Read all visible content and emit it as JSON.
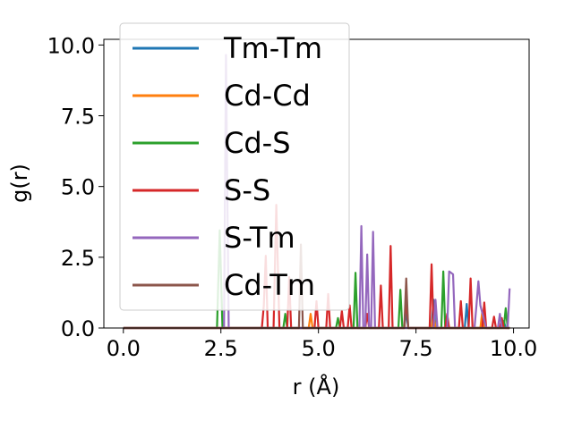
{
  "chart_data": {
    "type": "line",
    "title": "",
    "xlabel": "r (Å)",
    "ylabel": "g(r)",
    "xlim": [
      -0.5,
      10.4
    ],
    "ylim": [
      0,
      10.2
    ],
    "xticks": [
      "0.0",
      "2.5",
      "5.0",
      "7.5",
      "10.0"
    ],
    "yticks": [
      "0.0",
      "2.5",
      "5.0",
      "7.5",
      "10.0"
    ],
    "grid": false,
    "legend_position": "upper-left",
    "series": [
      {
        "name": "Tm-Tm",
        "color": "#1f77b4",
        "points": [
          [
            0,
            0
          ],
          [
            7.2,
            0
          ],
          [
            7.25,
            0.6
          ],
          [
            7.3,
            0
          ],
          [
            7.9,
            0
          ],
          [
            7.95,
            1.0
          ],
          [
            8.0,
            0
          ],
          [
            8.75,
            0
          ],
          [
            8.8,
            0.85
          ],
          [
            8.85,
            0
          ],
          [
            9.7,
            0
          ],
          [
            9.75,
            0.25
          ],
          [
            9.8,
            0
          ],
          [
            9.9,
            0
          ]
        ]
      },
      {
        "name": "Cd-Cd",
        "color": "#ff7f0e",
        "points": [
          [
            0,
            0
          ],
          [
            4.75,
            0
          ],
          [
            4.8,
            0.5
          ],
          [
            4.85,
            0
          ],
          [
            7.9,
            0
          ],
          [
            7.95,
            0.5
          ],
          [
            8.0,
            0
          ],
          [
            9.15,
            0
          ],
          [
            9.2,
            0.6
          ],
          [
            9.25,
            0
          ],
          [
            9.9,
            0
          ]
        ]
      },
      {
        "name": "Cd-S",
        "color": "#2ca02c",
        "points": [
          [
            0,
            0
          ],
          [
            2.4,
            0
          ],
          [
            2.47,
            3.45
          ],
          [
            2.54,
            0
          ],
          [
            4.1,
            0
          ],
          [
            4.15,
            0.5
          ],
          [
            4.2,
            0
          ],
          [
            5.45,
            0
          ],
          [
            5.5,
            0.35
          ],
          [
            5.55,
            0
          ],
          [
            5.9,
            0
          ],
          [
            5.95,
            1.95
          ],
          [
            6.0,
            0
          ],
          [
            7.05,
            0
          ],
          [
            7.1,
            1.35
          ],
          [
            7.15,
            0
          ],
          [
            8.15,
            0
          ],
          [
            8.2,
            2.0
          ],
          [
            8.25,
            0
          ],
          [
            9.75,
            0
          ],
          [
            9.8,
            0.7
          ],
          [
            9.85,
            0
          ],
          [
            9.9,
            0
          ]
        ]
      },
      {
        "name": "S-S",
        "color": "#d62728",
        "points": [
          [
            0,
            0
          ],
          [
            3.55,
            0
          ],
          [
            3.6,
            0.8
          ],
          [
            3.65,
            2.55
          ],
          [
            3.7,
            0
          ],
          [
            3.85,
            0
          ],
          [
            3.92,
            4.35
          ],
          [
            4.0,
            0
          ],
          [
            4.2,
            0
          ],
          [
            4.25,
            1.8
          ],
          [
            4.3,
            0
          ],
          [
            4.9,
            0
          ],
          [
            4.95,
            0.95
          ],
          [
            5.0,
            0
          ],
          [
            5.2,
            0
          ],
          [
            5.25,
            1.2
          ],
          [
            5.3,
            0
          ],
          [
            5.55,
            0
          ],
          [
            5.6,
            0.6
          ],
          [
            5.65,
            0
          ],
          [
            5.75,
            0
          ],
          [
            5.8,
            0.8
          ],
          [
            5.85,
            0
          ],
          [
            6.2,
            0
          ],
          [
            6.25,
            0.5
          ],
          [
            6.3,
            0
          ],
          [
            6.55,
            0
          ],
          [
            6.6,
            1.5
          ],
          [
            6.65,
            0
          ],
          [
            6.8,
            0
          ],
          [
            6.85,
            2.9
          ],
          [
            6.9,
            0
          ],
          [
            7.2,
            0
          ],
          [
            7.25,
            1.1
          ],
          [
            7.3,
            0
          ],
          [
            7.85,
            0
          ],
          [
            7.9,
            2.25
          ],
          [
            7.95,
            0
          ],
          [
            8.25,
            0
          ],
          [
            8.3,
            0.5
          ],
          [
            8.35,
            0
          ],
          [
            8.6,
            0
          ],
          [
            8.65,
            0.95
          ],
          [
            8.7,
            0
          ],
          [
            8.85,
            0
          ],
          [
            8.9,
            1.75
          ],
          [
            8.95,
            0
          ],
          [
            9.2,
            0
          ],
          [
            9.25,
            0.9
          ],
          [
            9.3,
            0
          ],
          [
            9.45,
            0
          ],
          [
            9.5,
            0.4
          ],
          [
            9.55,
            0
          ],
          [
            9.65,
            0
          ],
          [
            9.7,
            0.35
          ],
          [
            9.75,
            0
          ],
          [
            9.9,
            0
          ]
        ]
      },
      {
        "name": "S-Tm",
        "color": "#9467bd",
        "points": [
          [
            0,
            0
          ],
          [
            2.58,
            0
          ],
          [
            2.63,
            9.65
          ],
          [
            2.7,
            0
          ],
          [
            6.05,
            0
          ],
          [
            6.1,
            3.6
          ],
          [
            6.15,
            0
          ],
          [
            6.2,
            0
          ],
          [
            6.25,
            2.6
          ],
          [
            6.3,
            0
          ],
          [
            6.35,
            0
          ],
          [
            6.4,
            3.4
          ],
          [
            6.45,
            0
          ],
          [
            7.95,
            0
          ],
          [
            8.0,
            1.0
          ],
          [
            8.05,
            0
          ],
          [
            8.3,
            0
          ],
          [
            8.35,
            2.0
          ],
          [
            8.45,
            1.9
          ],
          [
            8.5,
            0
          ],
          [
            9.0,
            0
          ],
          [
            9.05,
            0.8
          ],
          [
            9.1,
            1.65
          ],
          [
            9.15,
            0.8
          ],
          [
            9.3,
            0
          ],
          [
            9.6,
            0
          ],
          [
            9.65,
            0.5
          ],
          [
            9.7,
            0
          ],
          [
            9.85,
            0
          ],
          [
            9.9,
            1.4
          ]
        ]
      },
      {
        "name": "Cd-Tm",
        "color": "#8c564b",
        "points": [
          [
            0,
            0
          ],
          [
            4.5,
            0
          ],
          [
            4.55,
            2.95
          ],
          [
            4.6,
            0
          ],
          [
            7.2,
            0
          ],
          [
            7.25,
            1.75
          ],
          [
            7.3,
            0
          ],
          [
            9.9,
            0
          ]
        ]
      }
    ]
  }
}
